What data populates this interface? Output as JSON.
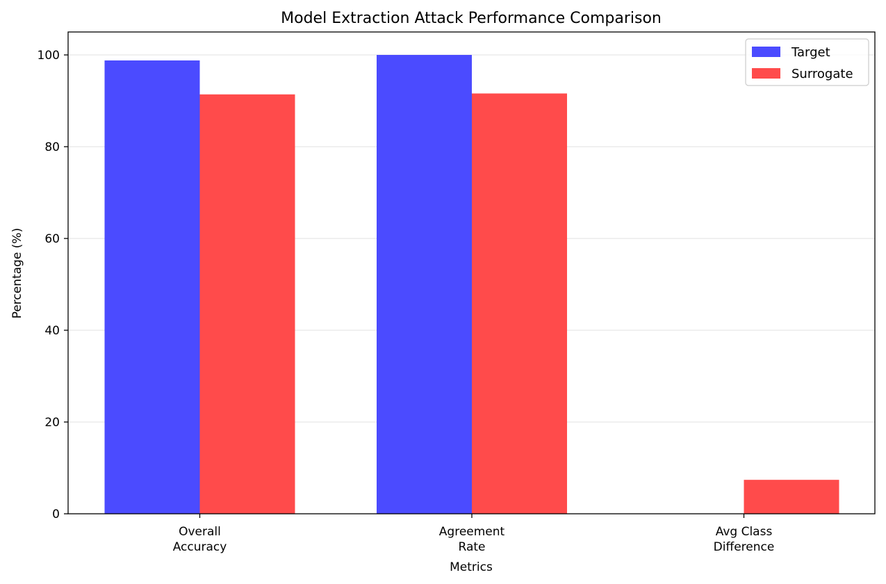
{
  "chart_data": {
    "type": "bar",
    "title": "Model Extraction Attack Performance Comparison",
    "xlabel": "Metrics",
    "ylabel": "Percentage (%)",
    "categories": [
      [
        "Overall",
        "Accuracy"
      ],
      [
        "Agreement",
        "Rate"
      ],
      [
        "Avg Class",
        "Difference"
      ]
    ],
    "series": [
      {
        "name": "Target",
        "color": "#4b4bff",
        "values": [
          98.8,
          100.0,
          0.0
        ]
      },
      {
        "name": "Surrogate",
        "color": "#ff4b4b",
        "values": [
          91.4,
          91.6,
          7.4
        ]
      }
    ],
    "ylim": [
      0,
      105
    ],
    "yticks": [
      0,
      20,
      40,
      60,
      80,
      100
    ],
    "grid": "horizontal",
    "legend_position": "top-right"
  }
}
